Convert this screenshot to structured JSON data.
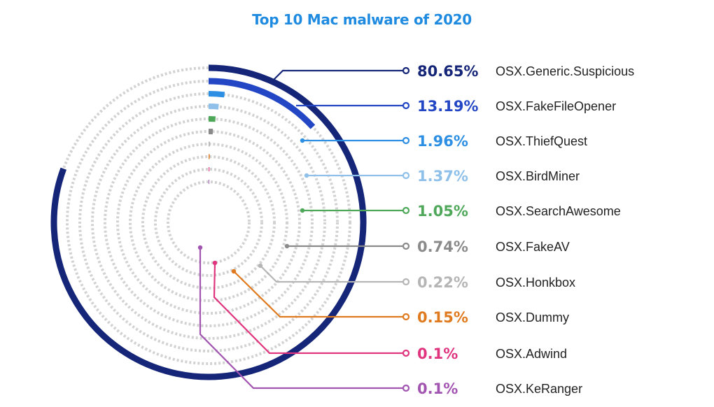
{
  "chart_data": {
    "type": "radial_bar",
    "title": "Top 10 Mac malware of 2020",
    "unit": "%",
    "max_value": 100,
    "categories": [
      "OSX.Generic.Suspicious",
      "OSX.FakeFileOpener",
      "OSX.ThiefQuest",
      "OSX.BirdMiner",
      "OSX.SearchAwesome",
      "OSX.FakeAV",
      "OSX.Honkbox",
      "OSX.Dummy",
      "OSX.Adwind",
      "OSX.KeRanger"
    ],
    "values": [
      80.65,
      13.19,
      1.96,
      1.37,
      1.05,
      0.74,
      0.22,
      0.15,
      0.1,
      0.1
    ],
    "value_labels": [
      "80.65%",
      "13.19%",
      "1.96%",
      "1.37%",
      "1.05%",
      "0.74%",
      "0.22%",
      "0.15%",
      "0.1%",
      "0.1%"
    ],
    "colors": [
      "#152578",
      "#2347c4",
      "#2d8fe3",
      "#8fc0ea",
      "#4fa85a",
      "#8a8a8a",
      "#b5b5b5",
      "#e07a1f",
      "#e0357e",
      "#a154b0"
    ],
    "track_color": "#d2d2d2",
    "legend_placement": "right"
  }
}
